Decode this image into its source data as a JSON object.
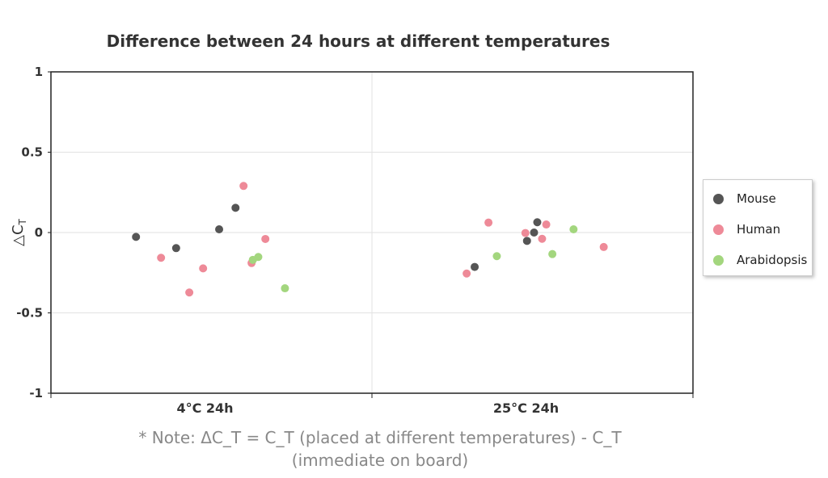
{
  "chart_data": {
    "type": "scatter",
    "title": "Difference between 24 hours at different temperatures",
    "ylabel": "△C_T",
    "ylim": [
      -1,
      1
    ],
    "yticks": [
      1,
      0.5,
      0,
      -0.5,
      -1
    ],
    "ytick_labels": [
      "1",
      "0.5",
      "0",
      "-0.5",
      "-1"
    ],
    "categories": [
      "4°C 24h",
      "25°C 24h"
    ],
    "grid": true,
    "legend_position": "right",
    "note": "* Note: ΔC_T = C_T (placed at different temperatures) - C_T (immediate on board)",
    "series": [
      {
        "name": "Mouse",
        "color": "#555555",
        "points": [
          {
            "category": "4°C 24h",
            "jitter": -0.235,
            "y": -0.027
          },
          {
            "category": "4°C 24h",
            "jitter": -0.11,
            "y": -0.097
          },
          {
            "category": "4°C 24h",
            "jitter": 0.024,
            "y": 0.02
          },
          {
            "category": "4°C 24h",
            "jitter": 0.075,
            "y": 0.154
          },
          {
            "category": "25°C 24h",
            "jitter": 0.015,
            "y": 0.064
          },
          {
            "category": "25°C 24h",
            "jitter": 0.005,
            "y": 0.0
          },
          {
            "category": "25°C 24h",
            "jitter": -0.017,
            "y": -0.052
          },
          {
            "category": "25°C 24h",
            "jitter": -0.18,
            "y": -0.214
          }
        ]
      },
      {
        "name": "Human",
        "color": "#ee8a98",
        "points": [
          {
            "category": "4°C 24h",
            "jitter": 0.1,
            "y": 0.29
          },
          {
            "category": "4°C 24h",
            "jitter": 0.168,
            "y": -0.04
          },
          {
            "category": "4°C 24h",
            "jitter": -0.157,
            "y": -0.157
          },
          {
            "category": "4°C 24h",
            "jitter": -0.026,
            "y": -0.223
          },
          {
            "category": "4°C 24h",
            "jitter": -0.069,
            "y": -0.373
          },
          {
            "category": "4°C 24h",
            "jitter": 0.125,
            "y": -0.19
          },
          {
            "category": "25°C 24h",
            "jitter": -0.137,
            "y": 0.062
          },
          {
            "category": "25°C 24h",
            "jitter": 0.043,
            "y": 0.05
          },
          {
            "category": "25°C 24h",
            "jitter": -0.022,
            "y": -0.003
          },
          {
            "category": "25°C 24h",
            "jitter": 0.03,
            "y": -0.039
          },
          {
            "category": "25°C 24h",
            "jitter": 0.222,
            "y": -0.09
          },
          {
            "category": "25°C 24h",
            "jitter": -0.205,
            "y": -0.255
          }
        ]
      },
      {
        "name": "Arabidopsis",
        "color": "#a3d67e",
        "points": [
          {
            "category": "4°C 24h",
            "jitter": 0.129,
            "y": -0.17
          },
          {
            "category": "4°C 24h",
            "jitter": 0.146,
            "y": -0.152
          },
          {
            "category": "4°C 24h",
            "jitter": 0.229,
            "y": -0.347
          },
          {
            "category": "25°C 24h",
            "jitter": 0.128,
            "y": 0.02
          },
          {
            "category": "25°C 24h",
            "jitter": 0.062,
            "y": -0.134
          },
          {
            "category": "25°C 24h",
            "jitter": -0.111,
            "y": -0.147
          }
        ]
      }
    ]
  }
}
